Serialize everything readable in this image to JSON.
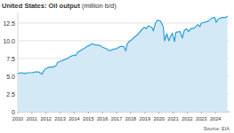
{
  "chart_data": {
    "type": "area",
    "title": "United States: Oil output",
    "subtitle": "(million b/d)",
    "source": "Source: EIA",
    "x": [
      2010.0,
      2010.25,
      2010.5,
      2010.75,
      2011.0,
      2011.25,
      2011.5,
      2011.7,
      2011.85,
      2012.0,
      2012.25,
      2012.5,
      2012.7,
      2012.85,
      2013.0,
      2013.25,
      2013.5,
      2013.75,
      2014.0,
      2014.1,
      2014.25,
      2014.5,
      2014.75,
      2015.0,
      2015.3,
      2015.5,
      2015.75,
      2016.0,
      2016.25,
      2016.5,
      2016.75,
      2017.0,
      2017.25,
      2017.5,
      2017.65,
      2017.75,
      2017.95,
      2018.1,
      2018.25,
      2018.5,
      2018.75,
      2018.95,
      2019.1,
      2019.25,
      2019.5,
      2019.6,
      2019.75,
      2019.9,
      2020.1,
      2020.3,
      2020.4,
      2020.55,
      2020.7,
      2020.8,
      2020.95,
      2021.1,
      2021.2,
      2021.5,
      2021.65,
      2021.8,
      2021.95,
      2022.1,
      2022.25,
      2022.5,
      2022.75,
      2022.9,
      2023.0,
      2023.25,
      2023.5,
      2023.75,
      2023.95,
      2024.05,
      2024.2,
      2024.5,
      2024.75,
      2024.85
    ],
    "values": [
      5.4,
      5.5,
      5.4,
      5.5,
      5.5,
      5.6,
      5.6,
      5.3,
      5.8,
      6.1,
      6.3,
      6.3,
      6.5,
      7.0,
      7.1,
      7.3,
      7.5,
      7.8,
      8.0,
      7.9,
      8.4,
      8.7,
      9.0,
      9.3,
      9.6,
      9.4,
      9.4,
      9.1,
      8.9,
      8.6,
      8.8,
      8.9,
      9.2,
      9.2,
      8.6,
      9.6,
      10.0,
      10.2,
      10.5,
      10.9,
      11.5,
      11.9,
      11.7,
      12.1,
      11.9,
      11.4,
      12.5,
      12.9,
      12.8,
      12.0,
      10.0,
      11.0,
      10.0,
      10.5,
      11.1,
      9.9,
      11.2,
      11.3,
      10.4,
      11.5,
      11.7,
      11.3,
      11.7,
      11.8,
      12.3,
      12.0,
      12.5,
      12.6,
      12.8,
      13.2,
      13.3,
      12.6,
      13.1,
      13.3,
      13.3,
      13.5
    ],
    "color": "#2a9fd6",
    "xlim": [
      2010,
      2025
    ],
    "xticks": [
      2010,
      2011,
      2012,
      2013,
      2014,
      2015,
      2016,
      2017,
      2018,
      2019,
      2020,
      2021,
      2022,
      2023,
      2024
    ],
    "ylim": [
      0,
      14
    ],
    "yticks": [
      0,
      2.5,
      {
        "value": 5,
        "label": "5.0"
      },
      7.5,
      {
        "value": 10,
        "label": "10.0"
      },
      12.5
    ],
    "grid": true
  }
}
